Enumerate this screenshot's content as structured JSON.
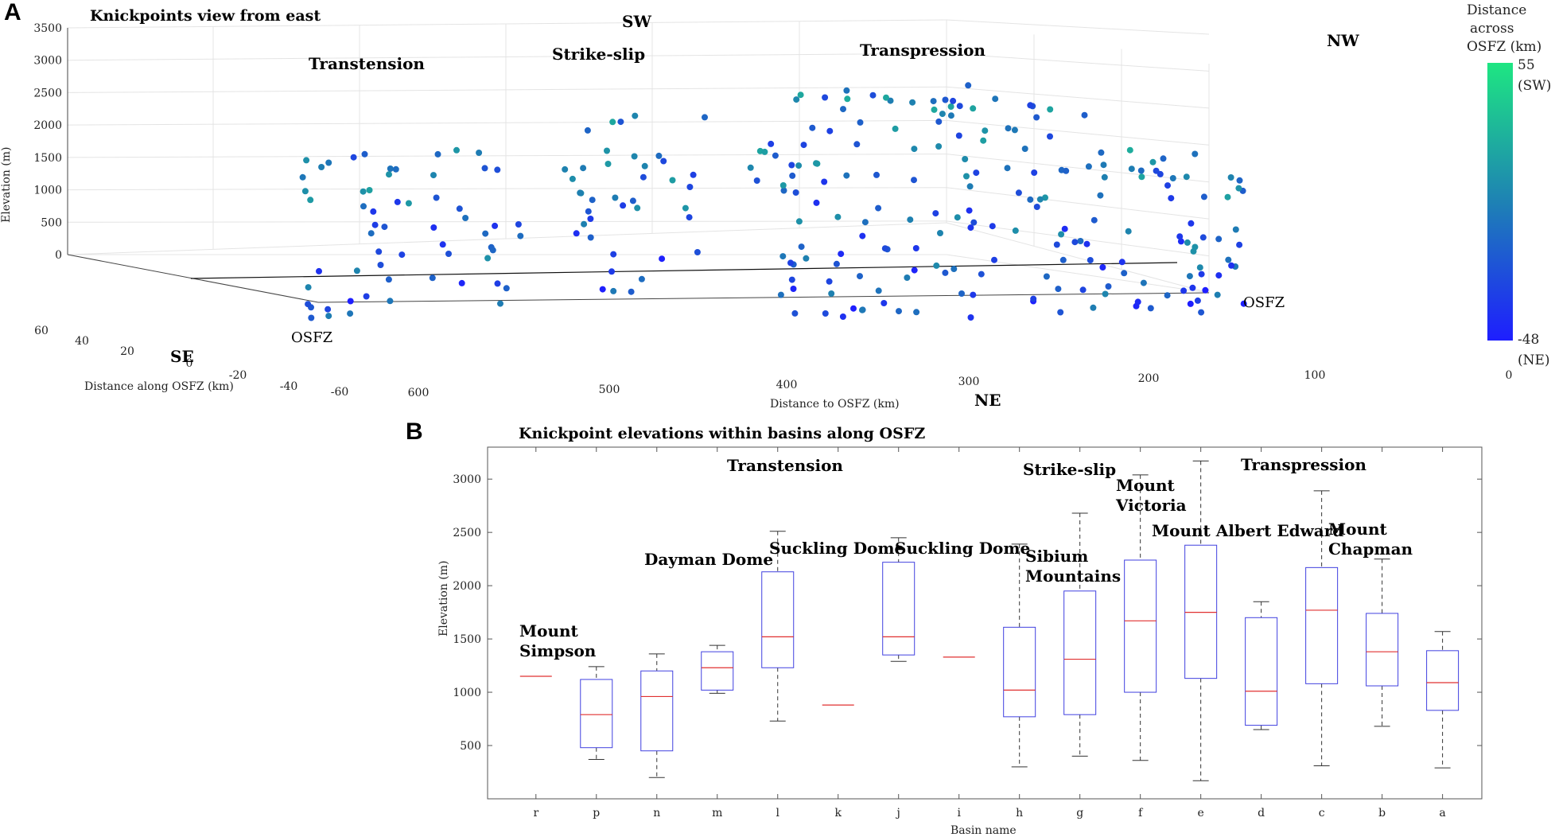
{
  "panel_a": {
    "letter": "A",
    "title": "Knickpoints view from east",
    "direction_labels": {
      "sw": "SW",
      "nw": "NW",
      "se": "SE",
      "ne": "NE"
    },
    "regions": [
      "Transtension",
      "Strike-slip",
      "Transpression"
    ],
    "osfz_labels": [
      "OSFZ",
      "OSFZ"
    ],
    "colorbar": {
      "title_lines": [
        "Distance",
        "across",
        "OSFZ (km)"
      ],
      "max_label": "55",
      "max_note": "(SW)",
      "min_label": "-48",
      "min_note": "(NE)",
      "color_top": "#1ee682",
      "color_bottom": "#1e1eff"
    }
  },
  "panel_b": {
    "letter": "B",
    "title": "Knickpoint elevations within basins along OSFZ",
    "regions": [
      "Transtension",
      "Strike-slip",
      "Transpression"
    ],
    "peak_labels": [
      {
        "lines": [
          "Mount",
          "Simpson"
        ]
      },
      {
        "lines": [
          "Dayman Dome"
        ]
      },
      {
        "lines": [
          "Suckling Dome"
        ]
      },
      {
        "lines": [
          "Suckling Dome"
        ]
      },
      {
        "lines": [
          "Sibium",
          "Mountains"
        ]
      },
      {
        "lines": [
          "Mount",
          "Victoria"
        ]
      },
      {
        "lines": [
          "Mount Albert Edward"
        ]
      },
      {
        "lines": [
          "Mount",
          "Chapman"
        ]
      }
    ]
  },
  "chart_data": [
    {
      "type": "scatter",
      "title": "Knickpoints view from east",
      "xlabel": "Distance to OSFZ (km)",
      "ylabel": "Elevation (m)",
      "zlabel": "Distance along OSFZ (km)",
      "x_ticks": [
        600,
        500,
        400,
        300,
        200,
        100,
        0
      ],
      "y_ticks": [
        0,
        500,
        1000,
        1500,
        2000,
        2500,
        3000,
        3500
      ],
      "z_ticks": [
        60,
        40,
        20,
        0,
        -20,
        -40,
        -60
      ],
      "zlim": [
        0,
        3500
      ],
      "color_scale": {
        "label": "Distance across OSFZ (km)",
        "min": -48,
        "max": 55
      },
      "series": [
        {
          "name": "knickpoints",
          "points": "several hundred knickpoints colored by distance across OSFZ"
        }
      ]
    },
    {
      "type": "box",
      "title": "Knickpoint elevations within basins along OSFZ",
      "xlabel": "Basin name",
      "ylabel": "Elevation (m)",
      "ylim": [
        0,
        3300
      ],
      "yticks": [
        500,
        1000,
        1500,
        2000,
        2500,
        3000
      ],
      "categories": [
        "r",
        "p",
        "n",
        "m",
        "l",
        "k",
        "j",
        "i",
        "h",
        "g",
        "f",
        "e",
        "d",
        "c",
        "b",
        "a"
      ],
      "boxes": [
        {
          "basin": "r",
          "median": 1150,
          "q1": null,
          "q3": null,
          "min": null,
          "max": null
        },
        {
          "basin": "p",
          "median": 790,
          "q1": 480,
          "q3": 1120,
          "min": 370,
          "max": 1240
        },
        {
          "basin": "n",
          "median": 960,
          "q1": 450,
          "q3": 1200,
          "min": 200,
          "max": 1360
        },
        {
          "basin": "m",
          "median": 1230,
          "q1": 1020,
          "q3": 1380,
          "min": 990,
          "max": 1440
        },
        {
          "basin": "l",
          "median": 1520,
          "q1": 1230,
          "q3": 2130,
          "min": 730,
          "max": 2510
        },
        {
          "basin": "k",
          "median": 880,
          "q1": null,
          "q3": null,
          "min": null,
          "max": null
        },
        {
          "basin": "j",
          "median": 1520,
          "q1": 1350,
          "q3": 2220,
          "min": 1290,
          "max": 2450
        },
        {
          "basin": "i",
          "median": 1330,
          "q1": null,
          "q3": null,
          "min": null,
          "max": null
        },
        {
          "basin": "h",
          "median": 1020,
          "q1": 770,
          "q3": 1610,
          "min": 300,
          "max": 2390
        },
        {
          "basin": "g",
          "median": 1310,
          "q1": 790,
          "q3": 1950,
          "min": 400,
          "max": 2680
        },
        {
          "basin": "f",
          "median": 1670,
          "q1": 1000,
          "q3": 2240,
          "min": 360,
          "max": 3040
        },
        {
          "basin": "e",
          "median": 1750,
          "q1": 1130,
          "q3": 2380,
          "min": 170,
          "max": 3170
        },
        {
          "basin": "d",
          "median": 1010,
          "q1": 690,
          "q3": 1700,
          "min": 650,
          "max": 1850
        },
        {
          "basin": "c",
          "median": 1770,
          "q1": 1080,
          "q3": 2170,
          "min": 310,
          "max": 2890
        },
        {
          "basin": "b",
          "median": 1380,
          "q1": 1060,
          "q3": 1740,
          "min": 680,
          "max": 2250
        },
        {
          "basin": "a",
          "median": 1090,
          "q1": 830,
          "q3": 1390,
          "min": 290,
          "max": 1570
        }
      ]
    }
  ]
}
